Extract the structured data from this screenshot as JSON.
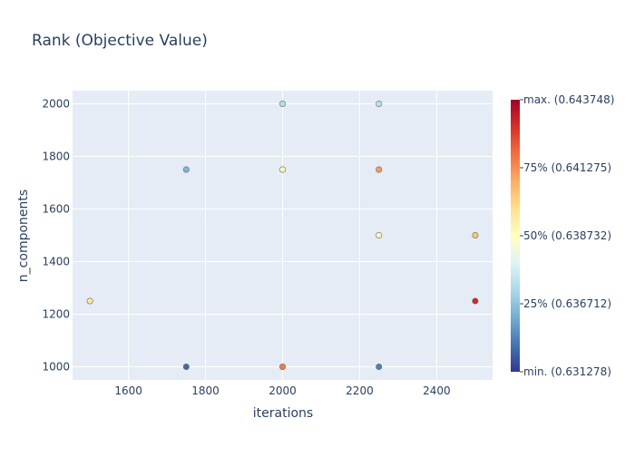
{
  "chart_data": {
    "type": "scatter",
    "title": "Rank (Objective Value)",
    "xlabel": "iterations",
    "ylabel": "n_components",
    "xlim": [
      1455,
      2545
    ],
    "ylim": [
      950,
      2050
    ],
    "xticks": [
      1600,
      1800,
      2000,
      2200,
      2400
    ],
    "yticks": [
      1000,
      1200,
      1400,
      1600,
      1800,
      2000
    ],
    "grid": true,
    "background_color": "#e5ecf6",
    "colorscale": [
      "#313695",
      "#4575b4",
      "#74add1",
      "#abd9e9",
      "#e0f3f8",
      "#ffffbf",
      "#fee090",
      "#fdae61",
      "#f46d43",
      "#d73027",
      "#a50026"
    ],
    "colorbar": {
      "labels": [
        {
          "text": "max. (0.643748)",
          "frac": 1.0
        },
        {
          "text": "75% (0.641275)",
          "frac": 0.75
        },
        {
          "text": "50% (0.638732)",
          "frac": 0.5
        },
        {
          "text": "25% (0.636712)",
          "frac": 0.25
        },
        {
          "text": "min. (0.631278)",
          "frac": 0.0
        }
      ]
    },
    "points": [
      {
        "x": 1500,
        "y": 1250,
        "c": 0.58
      },
      {
        "x": 1750,
        "y": 1750,
        "c": 0.22
      },
      {
        "x": 1750,
        "y": 1000,
        "c": 0.08
      },
      {
        "x": 2000,
        "y": 2000,
        "c": 0.32
      },
      {
        "x": 2000,
        "y": 1750,
        "c": 0.52
      },
      {
        "x": 2000,
        "y": 1000,
        "c": 0.78
      },
      {
        "x": 2250,
        "y": 2000,
        "c": 0.33
      },
      {
        "x": 2250,
        "y": 1750,
        "c": 0.73
      },
      {
        "x": 2250,
        "y": 1500,
        "c": 0.51
      },
      {
        "x": 2250,
        "y": 1000,
        "c": 0.12
      },
      {
        "x": 2500,
        "y": 1500,
        "c": 0.65
      },
      {
        "x": 2500,
        "y": 1250,
        "c": 0.92
      }
    ]
  }
}
